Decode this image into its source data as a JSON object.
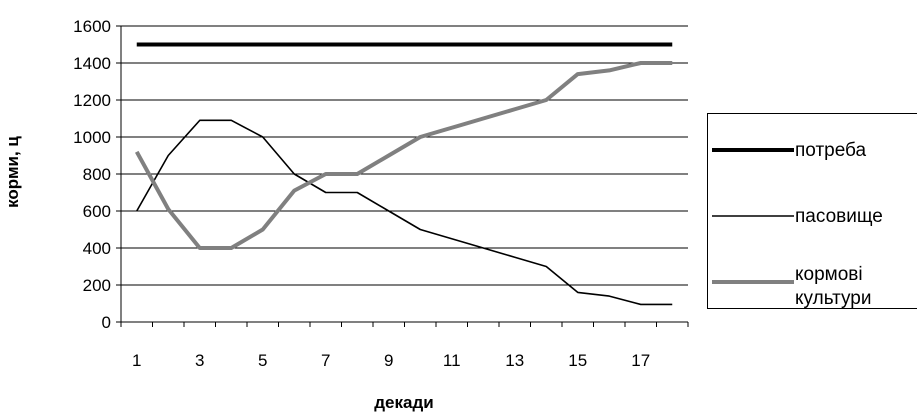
{
  "chart_data": {
    "type": "line",
    "title": "",
    "xlabel": "декади",
    "ylabel": "корми, ц",
    "x": [
      1,
      2,
      3,
      4,
      5,
      6,
      7,
      8,
      9,
      10,
      11,
      12,
      13,
      14,
      15,
      16,
      17,
      18
    ],
    "x_tick_labels": [
      "1",
      "3",
      "5",
      "7",
      "9",
      "11",
      "13",
      "15",
      "17"
    ],
    "xlim": [
      0.5,
      18.5
    ],
    "ylim": [
      0,
      1600
    ],
    "y_ticks": [
      0,
      200,
      400,
      600,
      800,
      1000,
      1200,
      1400,
      1600
    ],
    "grid": "horizontal",
    "legend_position": "right",
    "series": [
      {
        "name": "потреба",
        "color": "#000000",
        "values": [
          1500,
          1500,
          1500,
          1500,
          1500,
          1500,
          1500,
          1500,
          1500,
          1500,
          1500,
          1500,
          1500,
          1500,
          1500,
          1500,
          1500,
          1500
        ]
      },
      {
        "name": "пасовище",
        "color": "#000000",
        "values": [
          600,
          900,
          1090,
          1090,
          1000,
          800,
          700,
          700,
          600,
          500,
          450,
          400,
          350,
          300,
          160,
          140,
          95,
          95
        ]
      },
      {
        "name": "кормові культури",
        "name_lines": [
          "кормові",
          "культури"
        ],
        "color": "#808080",
        "values": [
          920,
          610,
          400,
          400,
          500,
          710,
          800,
          800,
          900,
          1000,
          1050,
          1100,
          1150,
          1200,
          1340,
          1360,
          1400,
          1400
        ]
      }
    ]
  }
}
